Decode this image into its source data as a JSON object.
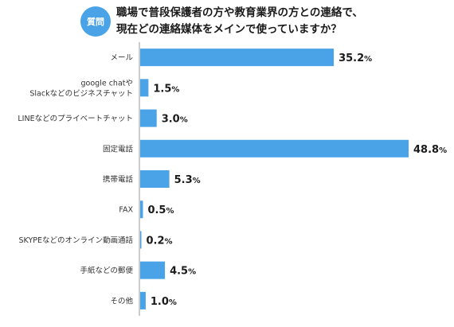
{
  "question_badge": "質問",
  "title_lines": [
    "職場で普段保護者の方や教育業界の方との連絡で、",
    "現在どの連絡媒体をメインで使っていますか？"
  ],
  "colors": {
    "bar": "#4aa3e6",
    "axis": "#999999",
    "badge": "#4aa3e6"
  },
  "chart_data": {
    "type": "bar",
    "orientation": "horizontal",
    "unit": "%",
    "categories": [
      [
        "メール"
      ],
      [
        "google chatや",
        "Slackなどのビジネスチャット"
      ],
      [
        "LINEなどのプライベートチャット"
      ],
      [
        "固定電話"
      ],
      [
        "携帯電話"
      ],
      [
        "FAX"
      ],
      [
        "SKYPEなどのオンライン動画通話"
      ],
      [
        "手紙などの郵便"
      ],
      [
        "その他"
      ]
    ],
    "values": [
      35.2,
      1.5,
      3.0,
      48.8,
      5.3,
      0.5,
      0.2,
      4.5,
      1.0
    ],
    "value_labels": [
      "35.2",
      "1.5",
      "3.0",
      "48.8",
      "5.3",
      "0.5",
      "0.2",
      "4.5",
      "1.0"
    ],
    "xlim": [
      0,
      50
    ]
  }
}
